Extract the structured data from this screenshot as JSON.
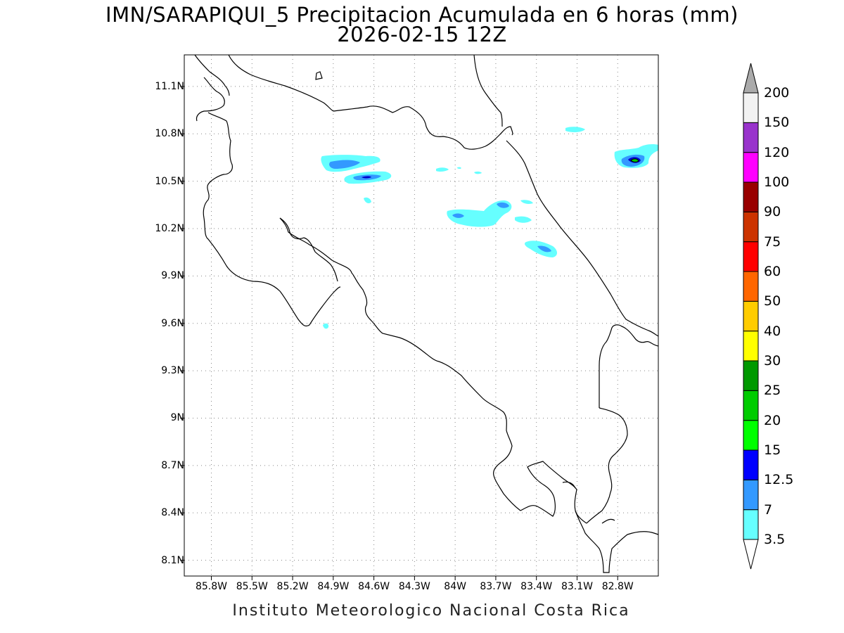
{
  "title": {
    "line1": "IMN/SARAPIQUI_5 Precipitacion Acumulada en 6 horas (mm)",
    "line2": "2026-02-15 12Z"
  },
  "map": {
    "lon_range": [
      -86.0,
      -82.5
    ],
    "lat_range": [
      8.0,
      11.3
    ],
    "y_ticks": [
      {
        "label": "11.1N",
        "lat": 11.1
      },
      {
        "label": "10.8N",
        "lat": 10.8
      },
      {
        "label": "10.5N",
        "lat": 10.5
      },
      {
        "label": "10.2N",
        "lat": 10.2
      },
      {
        "label": "9.9N",
        "lat": 9.9
      },
      {
        "label": "9.6N",
        "lat": 9.6
      },
      {
        "label": "9.3N",
        "lat": 9.3
      },
      {
        "label": "9N",
        "lat": 9.0
      },
      {
        "label": "8.7N",
        "lat": 8.7
      },
      {
        "label": "8.4N",
        "lat": 8.4
      },
      {
        "label": "8.1N",
        "lat": 8.1
      }
    ],
    "x_ticks": [
      {
        "label": "85.8W",
        "lon": -85.8
      },
      {
        "label": "85.5W",
        "lon": -85.5
      },
      {
        "label": "85.2W",
        "lon": -85.2
      },
      {
        "label": "84.9W",
        "lon": -84.9
      },
      {
        "label": "84.6W",
        "lon": -84.6
      },
      {
        "label": "84.3W",
        "lon": -84.3
      },
      {
        "label": "84W",
        "lon": -84.0
      },
      {
        "label": "83.7W",
        "lon": -83.7
      },
      {
        "label": "83.4W",
        "lon": -83.4
      },
      {
        "label": "83.1W",
        "lon": -83.1
      },
      {
        "label": "82.8W",
        "lon": -82.8
      }
    ],
    "grid": "dotted",
    "precip_areas": [
      {
        "name": "north-west-cell-a",
        "lon": -84.77,
        "lat": 10.63,
        "max_level": "7"
      },
      {
        "name": "north-west-cell-b",
        "lon": -84.63,
        "lat": 10.53,
        "max_level": "12.5"
      },
      {
        "name": "north-west-cell-c",
        "lon": -84.57,
        "lat": 10.38,
        "max_level": "3.5"
      },
      {
        "name": "central-north-cell-a",
        "lon": -84.1,
        "lat": 10.58,
        "max_level": "3.5"
      },
      {
        "name": "central-north-cell-b",
        "lon": -83.85,
        "lat": 10.3,
        "max_level": "7"
      },
      {
        "name": "central-north-cell-c",
        "lon": -83.65,
        "lat": 10.35,
        "max_level": "7"
      },
      {
        "name": "central-north-cell-d",
        "lon": -83.55,
        "lat": 10.27,
        "max_level": "3.5"
      },
      {
        "name": "caribbean-cell",
        "lon": -83.35,
        "lat": 10.09,
        "max_level": "7"
      },
      {
        "name": "far-north-east-cell",
        "lon": -83.12,
        "lat": 10.84,
        "max_level": "3.5"
      },
      {
        "name": "north-east-cell",
        "lon": -82.71,
        "lat": 10.65,
        "max_level": "20"
      },
      {
        "name": "gulf-nicoya-cell",
        "lon": -85.01,
        "lat": 9.59,
        "max_level": "3.5"
      }
    ]
  },
  "colorbar": {
    "levels": [
      "3.5",
      "7",
      "12.5",
      "15",
      "20",
      "25",
      "30",
      "40",
      "50",
      "60",
      "75",
      "90",
      "100",
      "120",
      "150",
      "200"
    ],
    "colors": [
      "#66ffff",
      "#3399ff",
      "#0000ff",
      "#00ff00",
      "#00cc00",
      "#009900",
      "#ffff00",
      "#ffcc00",
      "#ff6600",
      "#ff0000",
      "#cc3300",
      "#990000",
      "#ff00ff",
      "#9933cc",
      "#f2f2f2"
    ],
    "over_color": "#aaaaaa",
    "under_color": "#ffffff"
  },
  "footer": "Instituto Meteorologico Nacional Costa Rica"
}
